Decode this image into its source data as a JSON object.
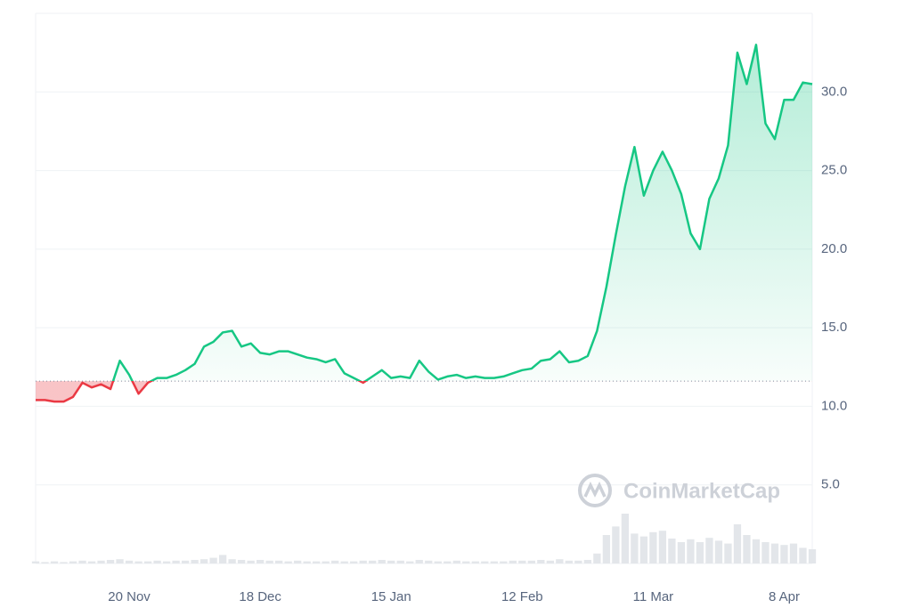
{
  "chart_data": {
    "type": "line",
    "categories": [
      null,
      null,
      null,
      null,
      null,
      null,
      null,
      null,
      null,
      null,
      "20 Nov",
      null,
      null,
      null,
      null,
      null,
      null,
      null,
      null,
      null,
      null,
      null,
      null,
      null,
      "18 Dec",
      null,
      null,
      null,
      null,
      null,
      null,
      null,
      null,
      null,
      null,
      null,
      null,
      null,
      "15 Jan",
      null,
      null,
      null,
      null,
      null,
      null,
      null,
      null,
      null,
      null,
      null,
      null,
      null,
      "12 Feb",
      null,
      null,
      null,
      null,
      null,
      null,
      null,
      null,
      null,
      null,
      null,
      null,
      null,
      "11 Mar",
      null,
      null,
      null,
      null,
      null,
      null,
      null,
      null,
      null,
      null,
      null,
      null,
      null,
      "8 Apr",
      null,
      null,
      null
    ],
    "values": [
      10.4,
      10.4,
      10.3,
      10.3,
      10.6,
      11.5,
      11.2,
      11.4,
      11.1,
      12.9,
      12.0,
      10.8,
      11.5,
      11.8,
      11.8,
      12.0,
      12.3,
      12.7,
      13.8,
      14.1,
      14.7,
      14.8,
      13.8,
      14.0,
      13.4,
      13.3,
      13.5,
      13.5,
      13.3,
      13.1,
      13.0,
      12.8,
      13.0,
      12.1,
      11.8,
      11.5,
      11.9,
      12.3,
      11.8,
      11.9,
      11.8,
      12.9,
      12.2,
      11.7,
      11.9,
      12.0,
      11.8,
      11.9,
      11.8,
      11.8,
      11.9,
      12.1,
      12.3,
      12.4,
      12.9,
      13.0,
      13.5,
      12.8,
      12.9,
      13.2,
      14.8,
      17.6,
      20.9,
      24.0,
      26.5,
      23.4,
      25.0,
      26.2,
      25.0,
      23.5,
      21.0,
      20.0,
      23.2,
      24.5,
      26.6,
      32.5,
      30.5,
      33.0,
      28.0,
      27.0,
      29.5,
      29.5,
      30.6,
      30.5
    ],
    "volume": [
      3,
      2,
      3,
      2,
      3,
      4,
      3,
      4,
      5,
      6,
      4,
      3,
      3,
      4,
      3,
      4,
      4,
      5,
      6,
      8,
      12,
      6,
      5,
      4,
      5,
      4,
      4,
      3,
      4,
      3,
      3,
      3,
      4,
      3,
      3,
      4,
      4,
      5,
      4,
      4,
      3,
      5,
      4,
      3,
      3,
      4,
      3,
      3,
      3,
      3,
      3,
      4,
      4,
      4,
      5,
      4,
      6,
      4,
      4,
      5,
      14,
      40,
      52,
      70,
      42,
      38,
      44,
      46,
      35,
      30,
      34,
      30,
      36,
      32,
      28,
      55,
      40,
      34,
      30,
      28,
      26,
      28,
      22,
      20
    ],
    "volume_lim": [
      0,
      100
    ],
    "baseline": 11.6,
    "up_color": "#16c784",
    "down_color": "#ea3943",
    "volume_color": "#e3e6ea",
    "ylim": [
      0,
      35
    ],
    "yticks": [
      {
        "value": 5,
        "label": "5.0"
      },
      {
        "value": 10,
        "label": "10.0"
      },
      {
        "value": 15,
        "label": "15.0"
      },
      {
        "value": 20,
        "label": "20.0"
      },
      {
        "value": 25,
        "label": "25.0"
      },
      {
        "value": 30,
        "label": "30.0"
      }
    ],
    "grid": true,
    "watermark": "CoinMarketCap"
  }
}
